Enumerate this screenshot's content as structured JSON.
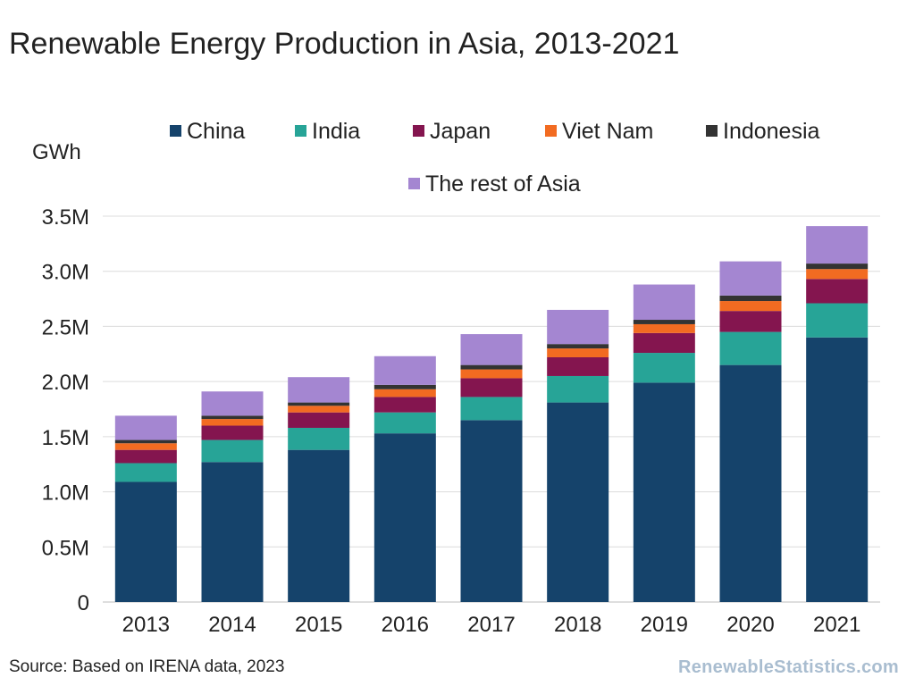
{
  "page": {
    "title": "Renewable Energy Production in Asia, 2013-2021",
    "source": "Source: Based on IRENA data, 2023",
    "brand": "RenewableStatistics.com"
  },
  "chart_data": {
    "type": "bar",
    "stacked": true,
    "title": "Renewable Energy Production in Asia, 2013-2021",
    "ylabel": "GWh",
    "xlabel": "",
    "ylim": [
      0,
      3500000
    ],
    "yticks": [
      0,
      500000,
      1000000,
      1500000,
      2000000,
      2500000,
      3000000,
      3500000
    ],
    "ytick_labels": [
      "0",
      "0.5M",
      "1.0M",
      "1.5M",
      "2.0M",
      "2.5M",
      "3.0M",
      "3.5M"
    ],
    "grid": true,
    "legend_position": "top",
    "categories": [
      "2013",
      "2014",
      "2015",
      "2016",
      "2017",
      "2018",
      "2019",
      "2020",
      "2021"
    ],
    "series": [
      {
        "name": "China",
        "color": "#15436b",
        "values": [
          1090000,
          1270000,
          1380000,
          1530000,
          1650000,
          1810000,
          1990000,
          2150000,
          2400000
        ]
      },
      {
        "name": "India",
        "color": "#27a497",
        "values": [
          170000,
          200000,
          200000,
          190000,
          210000,
          240000,
          270000,
          300000,
          310000
        ]
      },
      {
        "name": "Japan",
        "color": "#84154f",
        "values": [
          120000,
          130000,
          140000,
          140000,
          170000,
          170000,
          180000,
          190000,
          220000
        ]
      },
      {
        "name": "Viet Nam",
        "color": "#f26b21",
        "values": [
          60000,
          60000,
          60000,
          70000,
          80000,
          80000,
          80000,
          90000,
          90000
        ]
      },
      {
        "name": "Indonesia",
        "color": "#333333",
        "values": [
          30000,
          30000,
          30000,
          40000,
          40000,
          40000,
          40000,
          50000,
          50000
        ]
      },
      {
        "name": "The rest of Asia",
        "color": "#a486d1",
        "values": [
          220000,
          220000,
          230000,
          260000,
          280000,
          310000,
          320000,
          310000,
          340000
        ]
      }
    ]
  }
}
